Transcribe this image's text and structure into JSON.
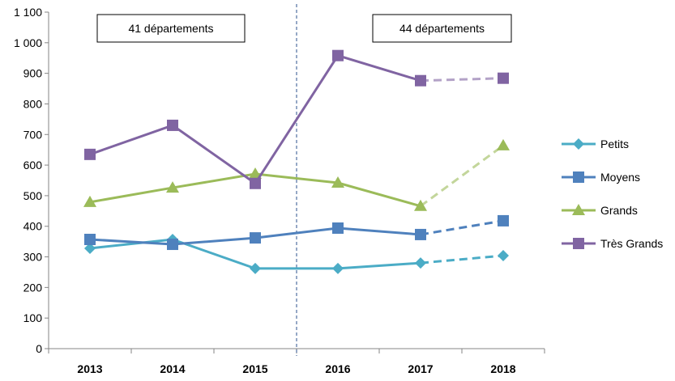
{
  "chart_data": {
    "type": "line",
    "title": "",
    "xlabel": "",
    "ylabel": "",
    "categories": [
      "2013",
      "2014",
      "2015",
      "2016",
      "2017",
      "2018"
    ],
    "ylim": [
      0,
      1100
    ],
    "yticks": [
      0,
      100,
      200,
      300,
      400,
      500,
      600,
      700,
      800,
      900,
      1000,
      1100
    ],
    "ytick_labels": [
      "0",
      "100",
      "200",
      "300",
      "400",
      "500",
      "600",
      "700",
      "800",
      "900",
      "1 000",
      "1 100"
    ],
    "grid": false,
    "legend_position": "right",
    "annotations": [
      {
        "text": "41 départements",
        "spans": [
          "2013",
          "2015"
        ]
      },
      {
        "text": "44 départements",
        "spans": [
          "2016",
          "2018"
        ]
      }
    ],
    "divider_between": [
      "2015",
      "2016"
    ],
    "last_segment_style": "dashed",
    "series": [
      {
        "name": "Petits",
        "color": "#4BACC6",
        "marker": "diamond",
        "values": [
          328,
          357,
          262,
          262,
          280,
          304
        ]
      },
      {
        "name": "Moyens",
        "color": "#4F81BD",
        "marker": "square",
        "values": [
          357,
          341,
          362,
          394,
          373,
          418
        ]
      },
      {
        "name": "Grands",
        "color": "#9BBB59",
        "dash_color": "#C3D69B",
        "marker": "triangle",
        "values": [
          479,
          526,
          571,
          542,
          466,
          664
        ]
      },
      {
        "name": "Très Grands",
        "color": "#8064A2",
        "dash_color": "#B3A2C7",
        "marker": "square",
        "values": [
          635,
          730,
          540,
          958,
          876,
          884
        ]
      }
    ]
  }
}
